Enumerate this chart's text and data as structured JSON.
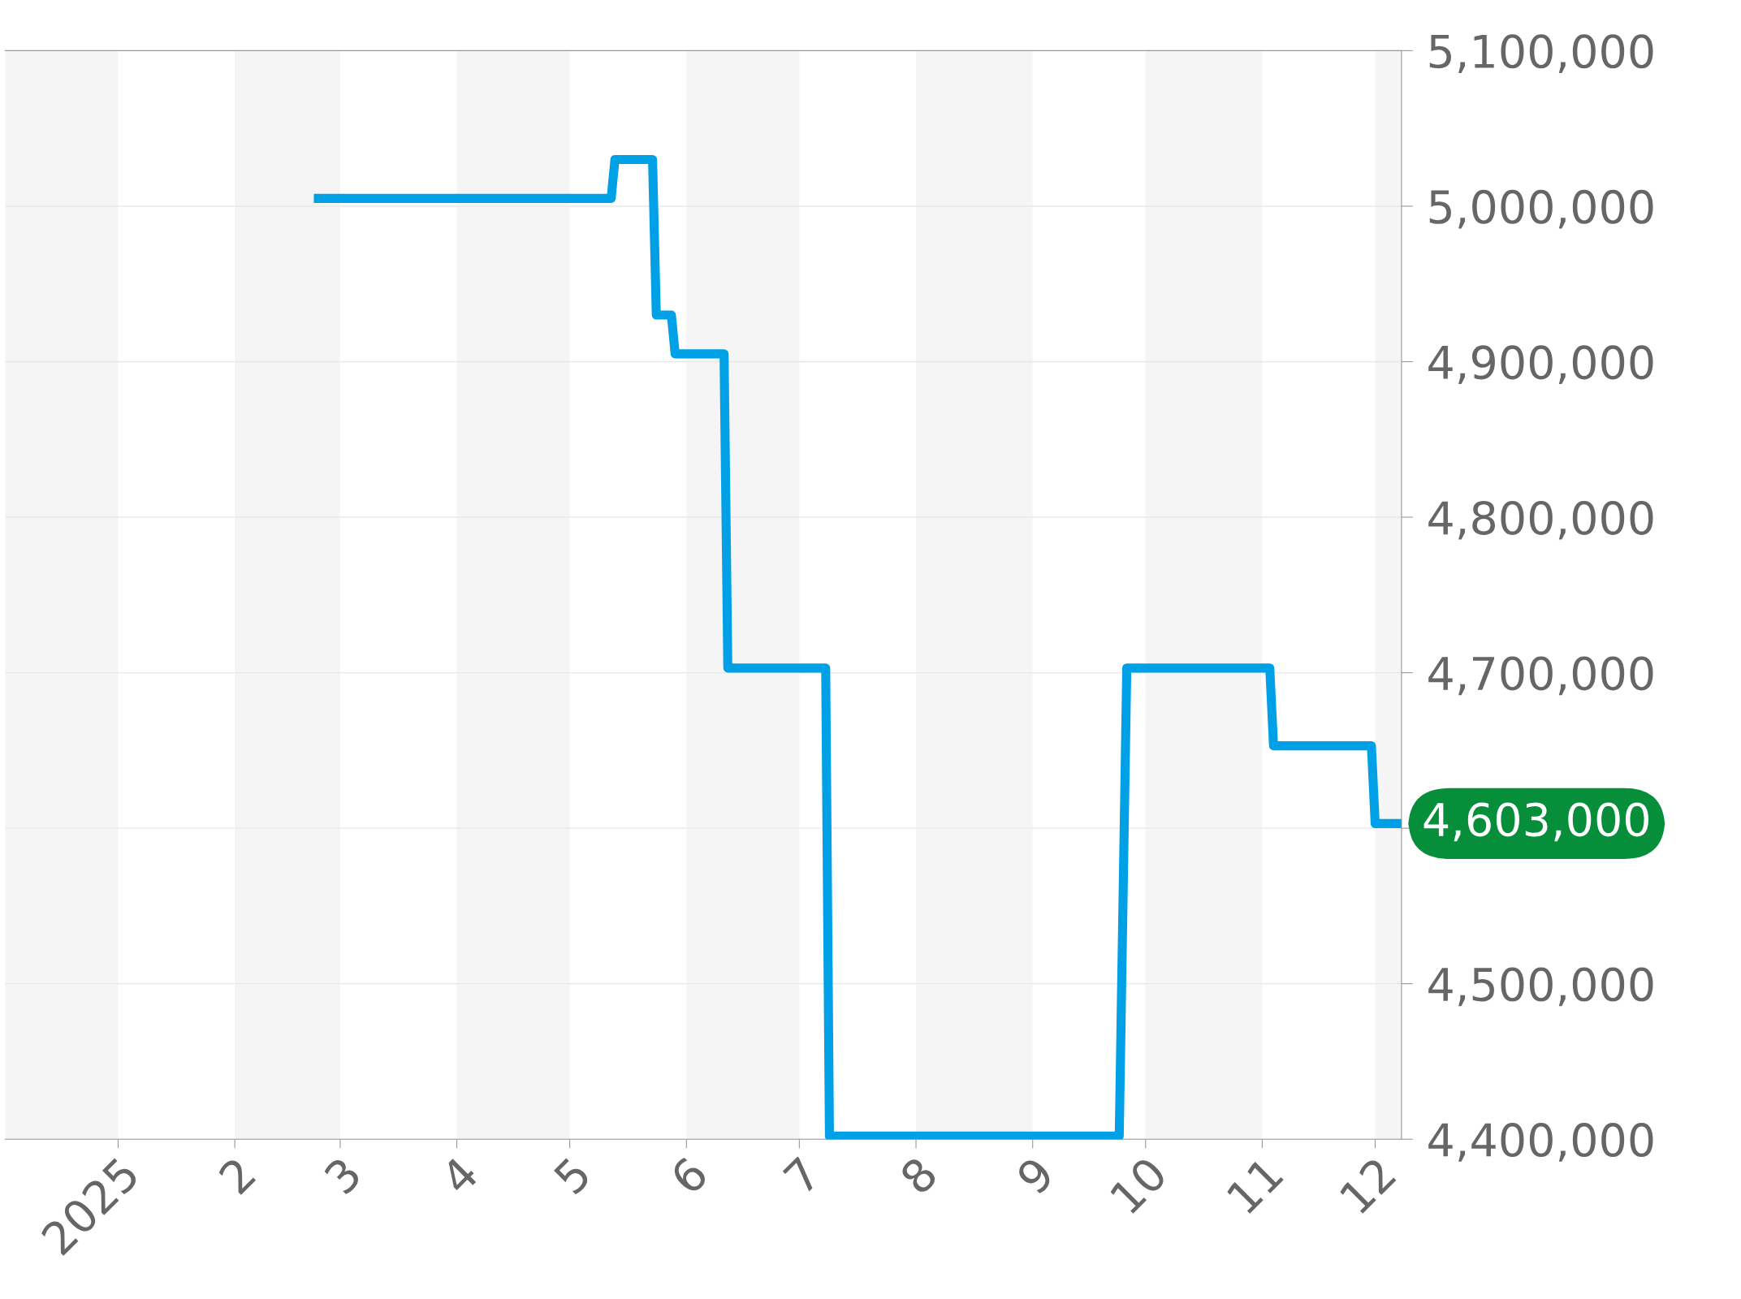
{
  "chart_data": {
    "type": "line",
    "x": [
      "2025-02-22",
      "2025-05-12",
      "2025-05-13",
      "2025-05-23",
      "2025-05-24",
      "2025-05-28",
      "2025-05-29",
      "2025-06-11",
      "2025-06-12",
      "2025-07-08",
      "2025-07-09",
      "2025-09-24",
      "2025-09-26",
      "2025-11-03",
      "2025-11-04",
      "2025-11-30",
      "2025-12-01",
      "2025-12-08"
    ],
    "series": [
      {
        "color": "#00a0e6",
        "values": [
          5005000,
          5005000,
          5030000,
          5030000,
          4930000,
          4930000,
          4905000,
          4905000,
          4703000,
          4703000,
          4402000,
          4402000,
          4703000,
          4703000,
          4653000,
          4653000,
          4603000,
          4603000
        ]
      }
    ],
    "xlim": [
      "2024-12-02",
      "2025-12-08"
    ],
    "xticks": [
      {
        "value": "2025-01-01",
        "label": "2025"
      },
      {
        "value": "2025-02-01",
        "label": "2"
      },
      {
        "value": "2025-03-01",
        "label": "3"
      },
      {
        "value": "2025-04-01",
        "label": "4"
      },
      {
        "value": "2025-05-01",
        "label": "5"
      },
      {
        "value": "2025-06-01",
        "label": "6"
      },
      {
        "value": "2025-07-01",
        "label": "7"
      },
      {
        "value": "2025-08-01",
        "label": "8"
      },
      {
        "value": "2025-09-01",
        "label": "9"
      },
      {
        "value": "2025-10-01",
        "label": "10"
      },
      {
        "value": "2025-11-01",
        "label": "11"
      },
      {
        "value": "2025-12-01",
        "label": "12"
      }
    ],
    "ylim": [
      4400000,
      5100000
    ],
    "yticks": [
      {
        "value": 4400000,
        "label": "4,400,000"
      },
      {
        "value": 4500000,
        "label": "4,500,000"
      },
      {
        "value": 4600000,
        "label": null
      },
      {
        "value": 4700000,
        "label": "4,700,000"
      },
      {
        "value": 4800000,
        "label": "4,800,000"
      },
      {
        "value": 4900000,
        "label": "4,900,000"
      },
      {
        "value": 5000000,
        "label": "5,000,000"
      },
      {
        "value": 5100000,
        "label": "5,100,000"
      }
    ],
    "bands": [
      {
        "axis": "x",
        "from": "2024-12-02",
        "to": "2025-01-01",
        "color": "#f5f5f5"
      },
      {
        "axis": "x",
        "from": "2025-02-01",
        "to": "2025-03-01",
        "color": "#f5f5f5"
      },
      {
        "axis": "x",
        "from": "2025-04-01",
        "to": "2025-05-01",
        "color": "#f5f5f5"
      },
      {
        "axis": "x",
        "from": "2025-06-01",
        "to": "2025-07-01",
        "color": "#f5f5f5"
      },
      {
        "axis": "x",
        "from": "2025-08-01",
        "to": "2025-09-01",
        "color": "#f5f5f5"
      },
      {
        "axis": "x",
        "from": "2025-10-01",
        "to": "2025-11-01",
        "color": "#f5f5f5"
      },
      {
        "axis": "x",
        "from": "2025-12-01",
        "to": "2025-12-08",
        "color": "#f5f5f5"
      }
    ],
    "annotations": [
      {
        "text": "4,603,000",
        "x": "2025-12-08",
        "y": 4603000
      }
    ],
    "grid": "y",
    "legend": false,
    "marker": "none",
    "line_style": "solid"
  }
}
